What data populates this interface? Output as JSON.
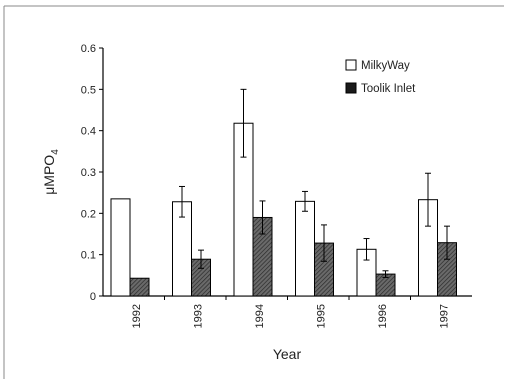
{
  "chart_data": {
    "type": "bar",
    "categories": [
      "1992",
      "1993",
      "1994",
      "1995",
      "1996",
      "1997"
    ],
    "series": [
      {
        "name": "MilkyWay",
        "values": [
          0.235,
          0.228,
          0.418,
          0.229,
          0.113,
          0.233
        ],
        "error": [
          null,
          0.037,
          0.082,
          0.024,
          0.026,
          0.064
        ],
        "color": "#ffffff"
      },
      {
        "name": "Toolik Inlet",
        "values": [
          0.043,
          0.089,
          0.19,
          0.128,
          0.053,
          0.129
        ],
        "error": [
          null,
          0.022,
          0.04,
          0.044,
          0.008,
          0.04
        ],
        "color": "#5a5a5a"
      }
    ],
    "xlabel": "Year",
    "ylabel_base": "μMPO",
    "ylabel_sub": "4",
    "ylim": [
      0,
      0.6
    ],
    "yticks": [
      "0",
      "0.1",
      "0.2",
      "0.3",
      "0.4",
      "0.5",
      "0.6"
    ],
    "grid": false,
    "legend_position": "top-right"
  }
}
